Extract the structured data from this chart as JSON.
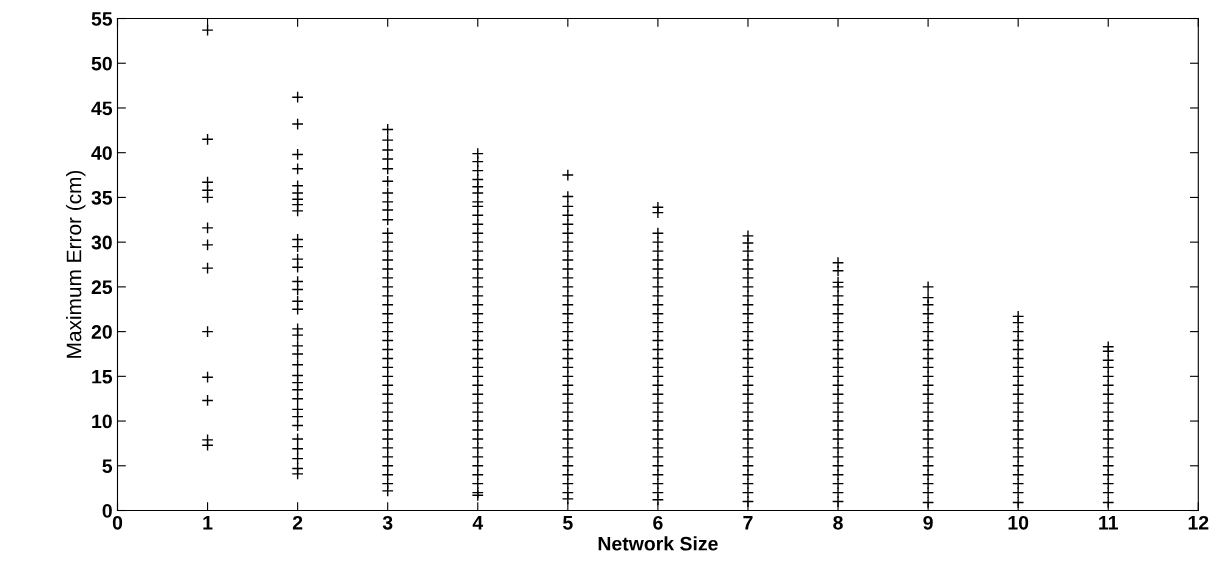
{
  "chart_data": {
    "type": "scatter",
    "xlabel": "Network Size",
    "ylabel": "Maximum Error (cm)",
    "xlim": [
      0,
      12
    ],
    "ylim": [
      0,
      55
    ],
    "xticks": [
      0,
      1,
      2,
      3,
      4,
      5,
      6,
      7,
      8,
      9,
      10,
      11,
      12
    ],
    "yticks": [
      0,
      5,
      10,
      15,
      20,
      25,
      30,
      35,
      40,
      45,
      50,
      55
    ],
    "grid": false,
    "legend": false,
    "marker": "cross",
    "series": [
      {
        "color": "#000000",
        "x": [
          1,
          1,
          1,
          1,
          1,
          1,
          1,
          1,
          1,
          1,
          1,
          1,
          1
        ],
        "values": [
          53.7,
          41.5,
          36.7,
          35.8,
          35.0,
          31.6,
          29.7,
          27.1,
          20.0,
          14.9,
          12.3,
          7.9,
          7.3
        ]
      },
      {
        "color": "#000000",
        "x": [
          2,
          2,
          2,
          2,
          2,
          2,
          2,
          2,
          2,
          2,
          2,
          2,
          2,
          2,
          2,
          2,
          2,
          2,
          2,
          2,
          2,
          2,
          2,
          2,
          2,
          2,
          2,
          2,
          2,
          2,
          2,
          2,
          2,
          2
        ],
        "values": [
          46.2,
          43.2,
          39.8,
          38.2,
          36.3,
          35.5,
          34.8,
          34.2,
          33.5,
          30.3,
          29.5,
          28.1,
          27.2,
          25.6,
          24.7,
          23.4,
          22.5,
          20.3,
          19.6,
          18.4,
          17.5,
          16.3,
          15.1,
          14.3,
          13.5,
          12.5,
          11.3,
          10.5,
          9.5,
          8.0,
          6.9,
          5.8,
          4.7,
          4.1
        ]
      },
      {
        "color": "#000000",
        "x": [
          3,
          3,
          3,
          3,
          3,
          3,
          3,
          3,
          3,
          3,
          3,
          3,
          3,
          3,
          3,
          3,
          3,
          3,
          3,
          3,
          3,
          3,
          3,
          3,
          3,
          3,
          3,
          3,
          3,
          3,
          3,
          3,
          3,
          3,
          3,
          3,
          3,
          3,
          3,
          3
        ],
        "values": [
          42.6,
          41.4,
          40.3,
          39.3,
          38.2,
          36.8,
          35.5,
          34.5,
          33.6,
          32.5,
          31,
          30,
          29,
          28,
          27,
          26,
          25,
          24,
          23,
          22,
          21,
          20,
          19,
          18,
          17,
          16,
          15,
          14,
          13,
          12,
          11,
          10,
          9,
          8,
          7,
          6,
          5,
          4,
          3,
          2.2
        ]
      },
      {
        "color": "#000000",
        "x": [
          4,
          4,
          4,
          4,
          4,
          4,
          4,
          4,
          4,
          4,
          4,
          4,
          4,
          4,
          4,
          4,
          4,
          4,
          4,
          4,
          4,
          4,
          4,
          4,
          4,
          4,
          4,
          4,
          4,
          4,
          4,
          4,
          4,
          4,
          4,
          4,
          4,
          4,
          4,
          4,
          4
        ],
        "values": [
          39.9,
          39.0,
          38.0,
          37.0,
          36.2,
          35.5,
          34.5,
          34,
          33,
          32,
          31,
          30,
          29,
          28,
          27,
          26,
          25,
          24,
          23,
          22,
          21,
          20,
          19,
          18,
          17,
          16,
          15,
          14,
          13,
          12,
          11,
          10,
          9,
          8,
          7,
          6,
          5,
          4,
          3,
          2,
          1.7
        ]
      },
      {
        "color": "#000000",
        "x": [
          5,
          5,
          5,
          5,
          5,
          5,
          5,
          5,
          5,
          5,
          5,
          5,
          5,
          5,
          5,
          5,
          5,
          5,
          5,
          5,
          5,
          5,
          5,
          5,
          5,
          5,
          5,
          5,
          5,
          5,
          5,
          5,
          5,
          5,
          5,
          5
        ],
        "values": [
          37.5,
          35.1,
          34,
          33,
          32,
          31,
          30,
          29,
          28,
          27,
          26,
          25,
          24,
          23,
          22,
          21,
          20,
          19,
          18,
          17,
          16,
          15,
          14,
          13,
          12,
          11,
          10,
          9,
          8,
          7,
          6,
          5,
          4,
          3,
          2,
          1.3
        ]
      },
      {
        "color": "#000000",
        "x": [
          6,
          6,
          6,
          6,
          6,
          6,
          6,
          6,
          6,
          6,
          6,
          6,
          6,
          6,
          6,
          6,
          6,
          6,
          6,
          6,
          6,
          6,
          6,
          6,
          6,
          6,
          6,
          6,
          6,
          6,
          6,
          6,
          6
        ],
        "values": [
          33.9,
          33.3,
          31.0,
          30,
          29,
          28,
          27,
          26,
          25,
          24,
          23,
          22,
          21,
          20,
          19,
          18,
          17,
          16,
          15,
          14,
          13,
          12,
          11,
          10,
          9,
          8,
          7,
          6,
          5,
          4,
          3,
          2,
          1.2
        ]
      },
      {
        "color": "#000000",
        "x": [
          7,
          7,
          7,
          7,
          7,
          7,
          7,
          7,
          7,
          7,
          7,
          7,
          7,
          7,
          7,
          7,
          7,
          7,
          7,
          7,
          7,
          7,
          7,
          7,
          7,
          7,
          7,
          7,
          7,
          7,
          7
        ],
        "values": [
          30.7,
          29.9,
          29,
          28,
          27,
          26,
          25,
          24,
          23,
          22,
          21,
          20,
          19,
          18,
          17,
          16,
          15,
          14,
          13,
          12,
          11,
          10,
          9,
          8,
          7,
          6,
          5,
          4,
          3,
          2,
          1.0
        ]
      },
      {
        "color": "#000000",
        "x": [
          8,
          8,
          8,
          8,
          8,
          8,
          8,
          8,
          8,
          8,
          8,
          8,
          8,
          8,
          8,
          8,
          8,
          8,
          8,
          8,
          8,
          8,
          8,
          8,
          8,
          8,
          8,
          8
        ],
        "values": [
          27.7,
          26.8,
          25.5,
          25,
          24,
          23,
          22,
          21,
          20,
          19,
          18,
          17,
          16,
          15,
          14,
          13,
          12,
          11,
          10,
          9,
          8,
          7,
          6,
          5,
          4,
          3,
          2,
          1.0
        ]
      },
      {
        "color": "#000000",
        "x": [
          9,
          9,
          9,
          9,
          9,
          9,
          9,
          9,
          9,
          9,
          9,
          9,
          9,
          9,
          9,
          9,
          9,
          9,
          9,
          9,
          9,
          9,
          9,
          9,
          9
        ],
        "values": [
          25.0,
          23.8,
          23,
          22,
          21,
          20,
          19,
          18,
          17,
          16,
          15,
          14,
          13,
          12,
          11,
          10,
          9,
          8,
          7,
          6,
          5,
          4,
          3,
          2,
          0.9
        ]
      },
      {
        "color": "#000000",
        "x": [
          10,
          10,
          10,
          10,
          10,
          10,
          10,
          10,
          10,
          10,
          10,
          10,
          10,
          10,
          10,
          10,
          10,
          10,
          10,
          10,
          10,
          10
        ],
        "values": [
          21.7,
          21.0,
          20.0,
          19,
          18,
          17,
          16,
          15,
          14,
          13,
          12,
          11,
          10,
          9,
          8,
          7,
          6,
          5,
          4,
          3,
          2,
          0.9
        ]
      },
      {
        "color": "#000000",
        "x": [
          11,
          11,
          11,
          11,
          11,
          11,
          11,
          11,
          11,
          11,
          11,
          11,
          11,
          11,
          11,
          11,
          11,
          11,
          11
        ],
        "values": [
          18.3,
          17.8,
          16.8,
          16,
          15,
          14,
          13,
          12,
          11,
          10,
          9,
          8,
          7,
          6,
          5,
          4,
          3,
          2,
          0.9
        ]
      }
    ]
  }
}
